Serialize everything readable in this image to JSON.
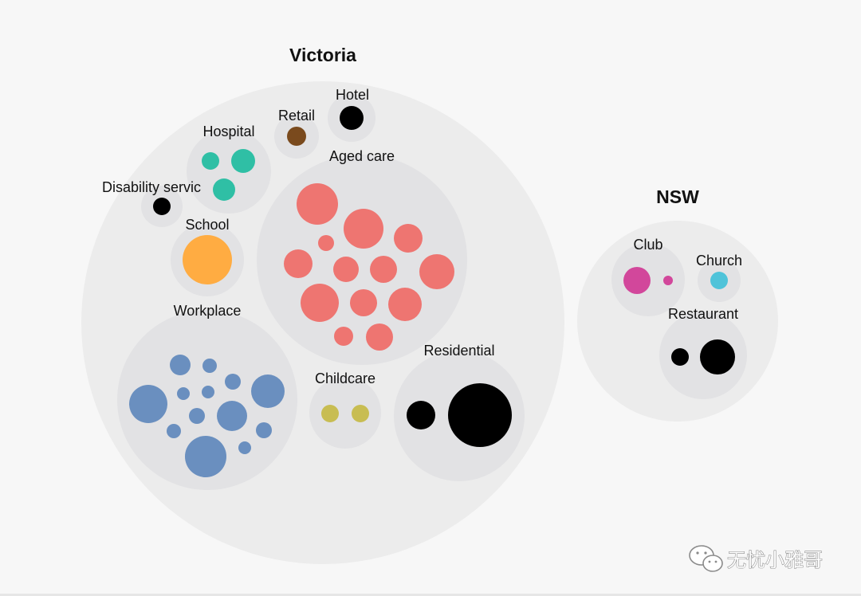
{
  "chart_data": {
    "type": "packed-bubble",
    "title": "",
    "colors": {
      "outer": "#ececec",
      "group": "#e2e2e4",
      "aged_care": "#ee7571",
      "workplace": "#6a8fbf",
      "hospital": "#2fbfa5",
      "school": "#ffac42",
      "retail": "#7a4a1d",
      "childcare": "#c8bd52",
      "club": "#d2479b",
      "church": "#4fc3d9",
      "black": "#000000"
    },
    "states": [
      {
        "name": "Victoria",
        "groups": [
          {
            "name": "Hotel",
            "color": "black",
            "clusters": 1
          },
          {
            "name": "Retail",
            "color": "retail",
            "clusters": 1
          },
          {
            "name": "Hospital",
            "color": "hospital",
            "clusters": 3
          },
          {
            "name": "Disability servic",
            "color": "black",
            "clusters": 1
          },
          {
            "name": "Aged care",
            "color": "aged_care",
            "clusters": 15
          },
          {
            "name": "School",
            "color": "school",
            "clusters": 1
          },
          {
            "name": "Workplace",
            "color": "workplace",
            "clusters": 14
          },
          {
            "name": "Childcare",
            "color": "childcare",
            "clusters": 2
          },
          {
            "name": "Residential",
            "color": "black",
            "clusters": 2
          }
        ]
      },
      {
        "name": "NSW",
        "groups": [
          {
            "name": "Club",
            "color": "club",
            "clusters": 2
          },
          {
            "name": "Church",
            "color": "church",
            "clusters": 1
          },
          {
            "name": "Restaurant",
            "color": "black",
            "clusters": 2
          }
        ]
      }
    ]
  },
  "watermark": {
    "text": "无忧小雅哥",
    "icon": "wechat-icon"
  }
}
